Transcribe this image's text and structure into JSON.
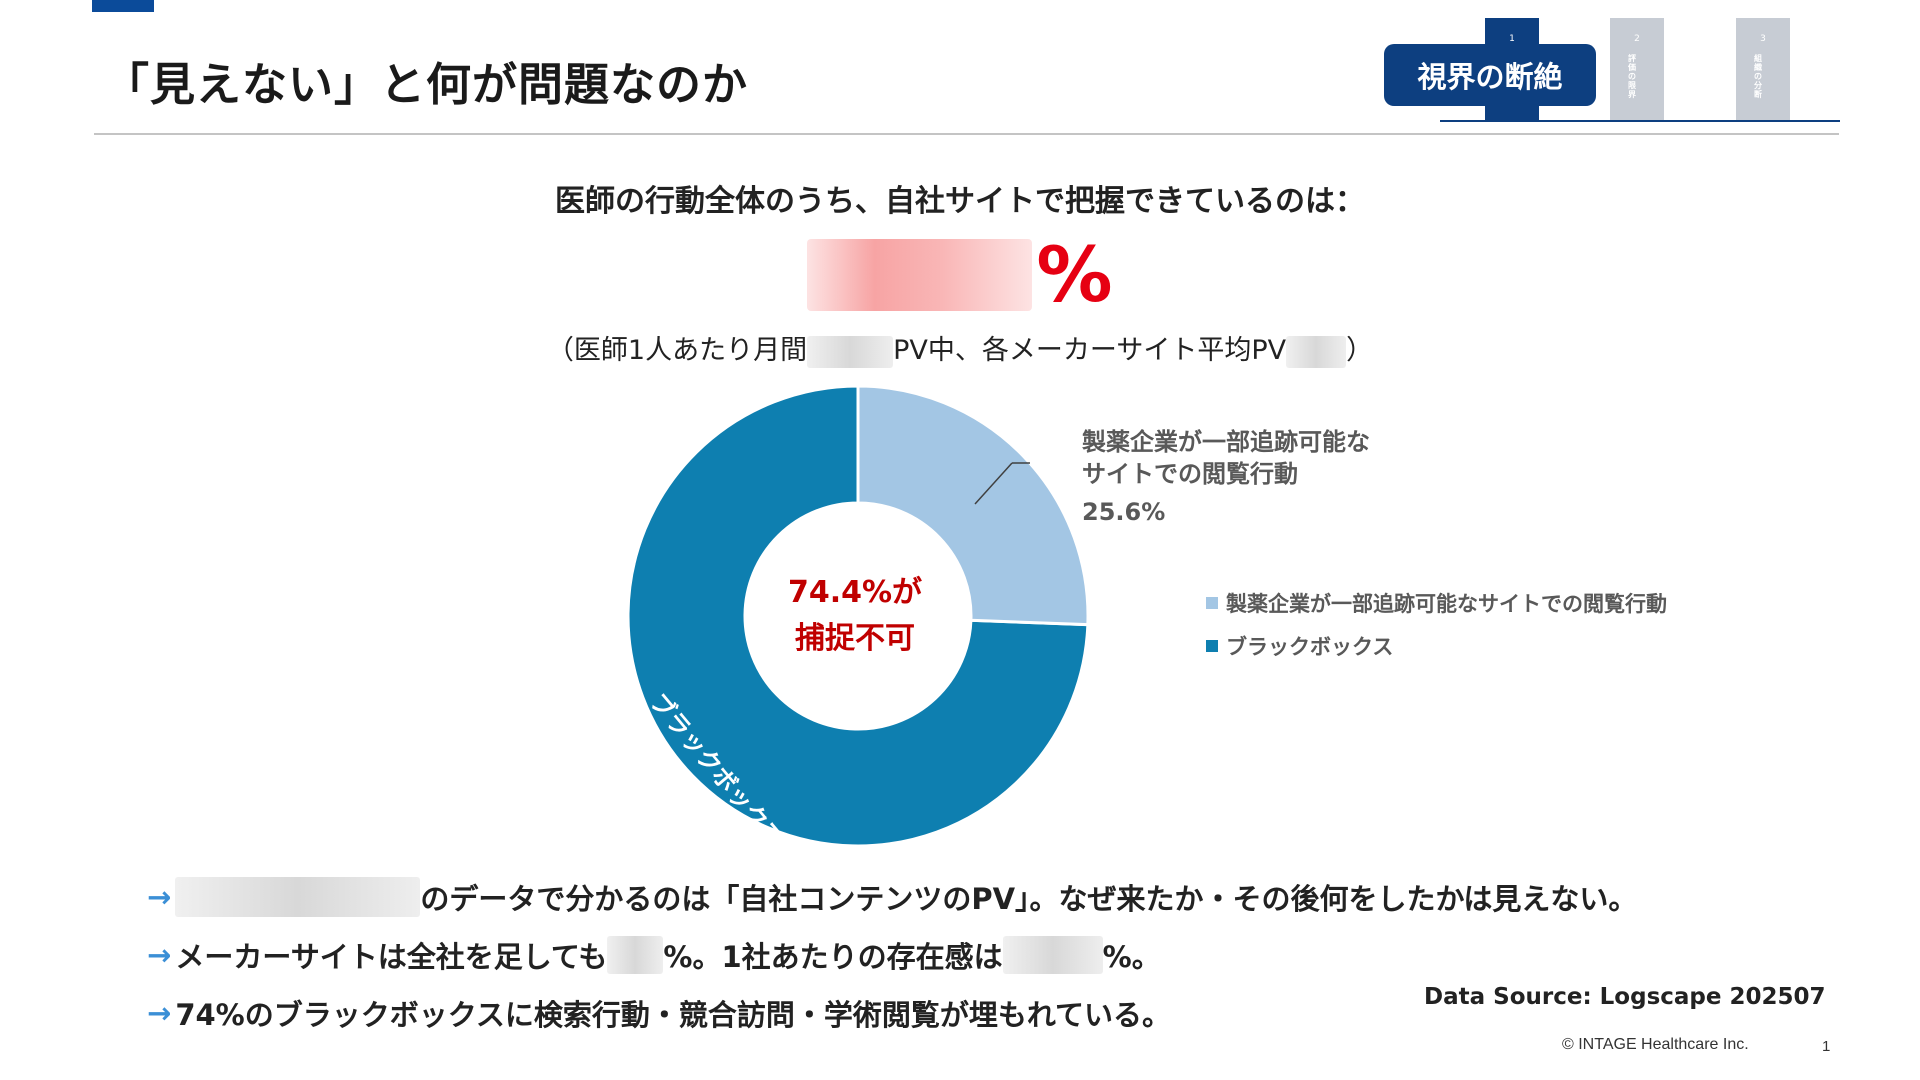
{
  "header": {
    "title": "「見えない」と何が問題なのか",
    "section_label": "視界の断絶",
    "steps": [
      {
        "num": "1",
        "label": "",
        "active": true
      },
      {
        "num": "2",
        "label": "評価の限界",
        "active": false
      },
      {
        "num": "3",
        "label": "組織の分断",
        "active": false
      }
    ]
  },
  "headline": {
    "question": "医師の行動全体のうち、自社サイトで把握できているのは：",
    "percent_symbol": "%",
    "note_part1": "（医師1人あたり月間",
    "note_part2": "PV中、各メーカーサイト平均PV",
    "note_part3": "）"
  },
  "chart_data": {
    "type": "pie",
    "subtype": "donut",
    "slices": [
      {
        "label": "製薬企業が一部追跡可能なサイトでの閲覧行動",
        "value": 25.6,
        "color": "#a3c6e4"
      },
      {
        "label": "ブラックボックス",
        "value": 74.4,
        "color": "#0e7fb0"
      }
    ],
    "center_text_line1": "74.4%が",
    "center_text_line2": "捕捉不可",
    "callout_line1": "製薬企業が一部追跡可能な",
    "callout_line2": "サイトでの閲覧行動",
    "callout_value": "25.6%",
    "inside_label": "ブラックボックス",
    "inside_value": "74.4%",
    "legend": [
      "製薬企業が一部追跡可能なサイトでの閲覧行動",
      "ブラックボックス"
    ],
    "legend_position": "right"
  },
  "bullets": {
    "arrow": "→",
    "b1_text": "のデータで分かるのは「自社コンテンツのPV」。なぜ来たか・その後何をしたかは見えない。",
    "b2_part1": "メーカーサイトは全社を足しても",
    "b2_part2": "%。1社あたりの存在感は",
    "b2_part3": "%。",
    "b3_text": "74%のブラックボックスに検索行動・競合訪問・学術閲覧が埋もれている。"
  },
  "footer": {
    "data_source": "Data Source: Logscape 202507",
    "copyright": "© INTAGE Healthcare Inc.",
    "page_number": "1"
  }
}
